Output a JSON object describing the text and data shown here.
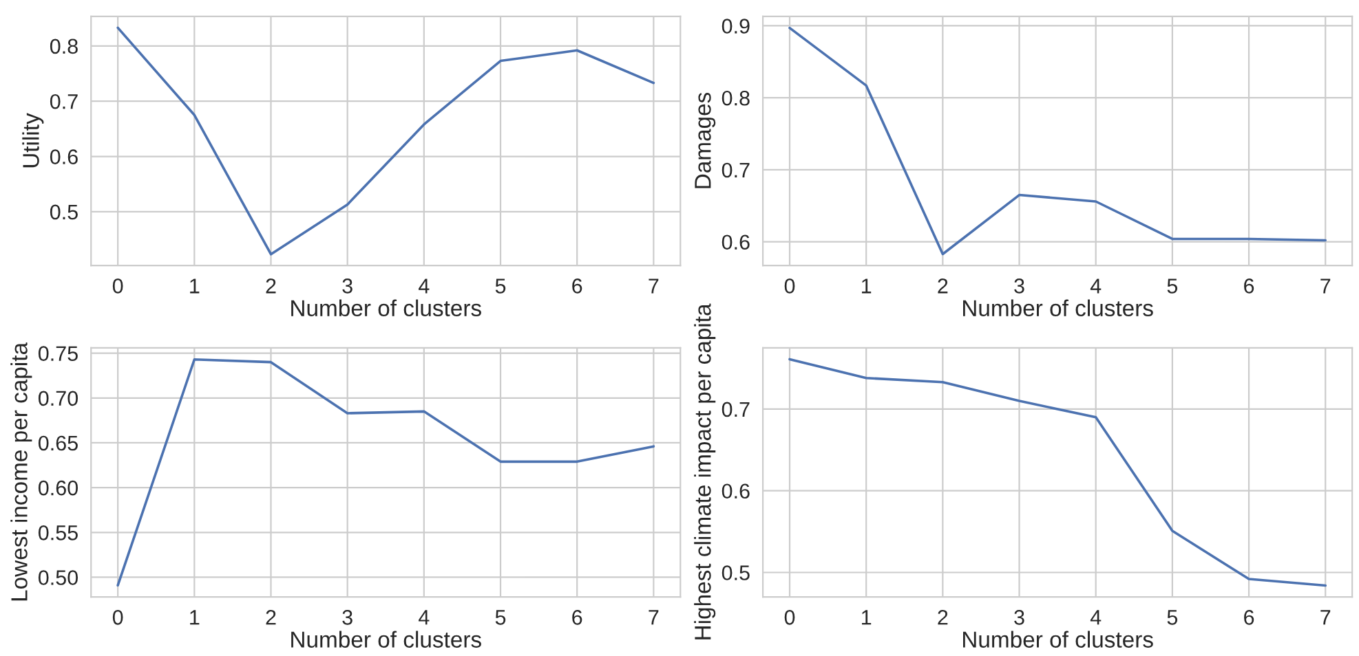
{
  "chart_data": [
    {
      "type": "line",
      "xlabel": "Number of clusters",
      "ylabel": "Utility",
      "x": [
        0,
        1,
        2,
        3,
        4,
        5,
        6,
        7
      ],
      "series": [
        {
          "color": "#4c72b0",
          "values": [
            0.833,
            0.675,
            0.423,
            0.513,
            0.658,
            0.773,
            0.792,
            0.733
          ]
        }
      ],
      "xlim": [
        -0.35,
        7.35
      ],
      "ylim": [
        0.4025,
        0.8535
      ],
      "xticks": [
        0,
        1,
        2,
        3,
        4,
        5,
        6,
        7
      ],
      "yticks": [
        0.5,
        0.6,
        0.7,
        0.8
      ],
      "grid": true
    },
    {
      "type": "line",
      "xlabel": "Number of clusters",
      "ylabel": "Damages",
      "x": [
        0,
        1,
        2,
        3,
        4,
        5,
        6,
        7
      ],
      "series": [
        {
          "color": "#4c72b0",
          "values": [
            0.897,
            0.817,
            0.583,
            0.665,
            0.656,
            0.604,
            0.604,
            0.602
          ]
        }
      ],
      "xlim": [
        -0.35,
        7.35
      ],
      "ylim": [
        0.567,
        0.913
      ],
      "xticks": [
        0,
        1,
        2,
        3,
        4,
        5,
        6,
        7
      ],
      "yticks": [
        0.6,
        0.7,
        0.8,
        0.9
      ],
      "grid": true
    },
    {
      "type": "line",
      "xlabel": "Number of clusters",
      "ylabel": "Lowest income per capita",
      "x": [
        0,
        1,
        2,
        3,
        4,
        5,
        6,
        7
      ],
      "series": [
        {
          "color": "#4c72b0",
          "values": [
            0.491,
            0.743,
            0.74,
            0.683,
            0.685,
            0.629,
            0.629,
            0.646
          ]
        }
      ],
      "xlim": [
        -0.35,
        7.35
      ],
      "ylim": [
        0.478,
        0.756
      ],
      "xticks": [
        0,
        1,
        2,
        3,
        4,
        5,
        6,
        7
      ],
      "yticks": [
        {
          "value": 0.5,
          "label": "0.50"
        },
        {
          "value": 0.55,
          "label": "0.55"
        },
        {
          "value": 0.6,
          "label": "0.60"
        },
        {
          "value": 0.65,
          "label": "0.65"
        },
        {
          "value": 0.7,
          "label": "0.70"
        },
        {
          "value": 0.75,
          "label": "0.75"
        }
      ],
      "grid": true
    },
    {
      "type": "line",
      "xlabel": "Number of clusters",
      "ylabel": "Highest climate impact per capita",
      "x": [
        0,
        1,
        2,
        3,
        4,
        5,
        6,
        7
      ],
      "series": [
        {
          "color": "#4c72b0",
          "values": [
            0.761,
            0.738,
            0.733,
            0.71,
            0.69,
            0.551,
            0.492,
            0.484
          ]
        }
      ],
      "xlim": [
        -0.35,
        7.35
      ],
      "ylim": [
        0.47,
        0.775
      ],
      "xticks": [
        0,
        1,
        2,
        3,
        4,
        5,
        6,
        7
      ],
      "yticks": [
        0.5,
        0.6,
        0.7
      ],
      "grid": true
    }
  ]
}
